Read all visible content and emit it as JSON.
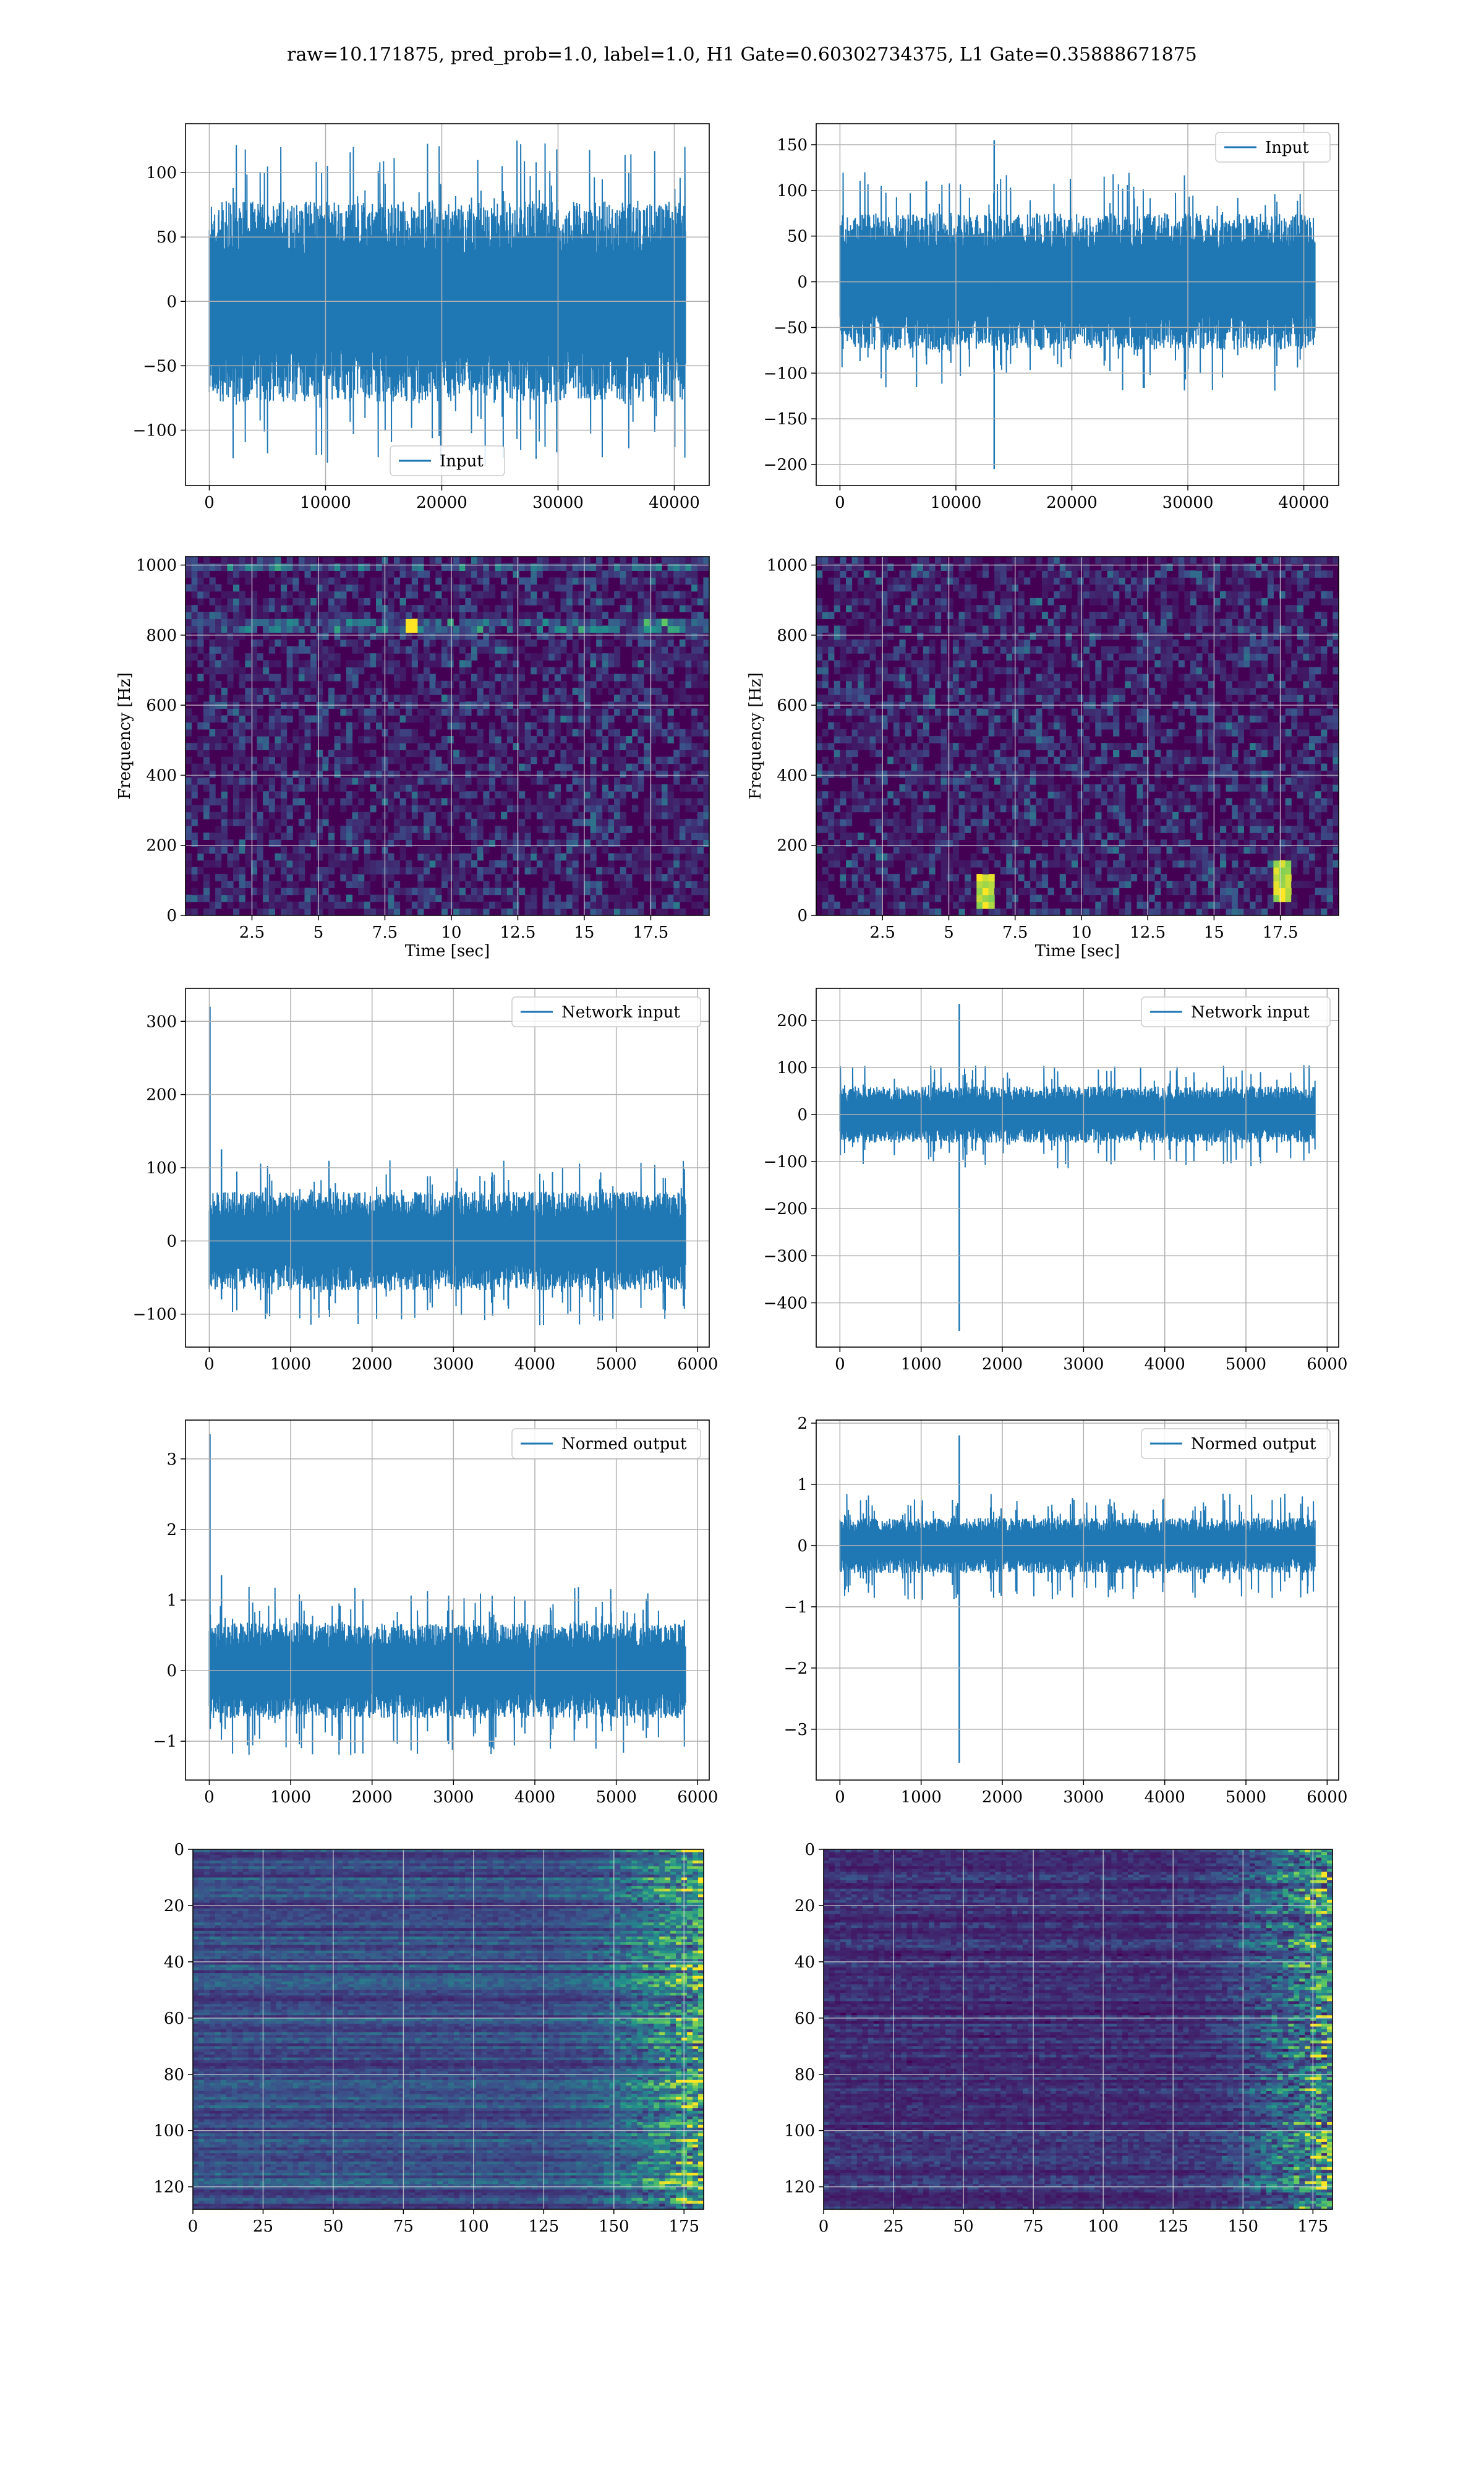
{
  "figure": {
    "suptitle": "raw=10.171875, pred_prob=1.0, label=1.0, H1 Gate=0.60302734375, L1 Gate=0.35888671875",
    "colors": {
      "line": "#1f77b4",
      "grid": "#b0b0b0",
      "spec_bg": "#440154"
    }
  },
  "chart_data": [
    {
      "id": "h1-input",
      "type": "line",
      "series": [
        {
          "name": "Input",
          "color": "#1f77b4",
          "x": [
            0,
            40960
          ],
          "envelope": {
            "band_lo": -52,
            "band_hi": 52,
            "peak_lo": -128,
            "peak_hi": 125
          }
        }
      ],
      "xlim": [
        -2048,
        43008
      ],
      "ylim": [
        -143,
        138
      ],
      "xticks": [
        0,
        10000,
        20000,
        30000,
        40000
      ],
      "yticks": [
        -100,
        -50,
        0,
        50,
        100
      ],
      "xlabel": "",
      "ylabel": "",
      "legend": "lower center",
      "grid": true
    },
    {
      "id": "l1-input",
      "type": "line",
      "series": [
        {
          "name": "Input",
          "color": "#1f77b4",
          "x": [
            0,
            40960
          ],
          "envelope": {
            "band_lo": -50,
            "band_hi": 50,
            "peak_lo": -120,
            "peak_hi": 120
          },
          "spikes": [
            {
              "x": 13300,
              "y_min": -205,
              "y_max": 155
            }
          ]
        }
      ],
      "xlim": [
        -2048,
        43008
      ],
      "ylim": [
        -223,
        173
      ],
      "xticks": [
        0,
        10000,
        20000,
        30000,
        40000
      ],
      "yticks": [
        -200,
        -150,
        -100,
        -50,
        0,
        50,
        100,
        150
      ],
      "xlabel": "",
      "ylabel": "",
      "legend": "upper right",
      "grid": true
    },
    {
      "id": "h1-spectrogram",
      "type": "heatmap",
      "colormap": "viridis",
      "xlim": [
        0,
        19.7
      ],
      "ylim": [
        0,
        1024
      ],
      "xticks": [
        2.5,
        5.0,
        7.5,
        10.0,
        12.5,
        15.0,
        17.5
      ],
      "yticks": [
        0,
        200,
        400,
        600,
        800,
        1000
      ],
      "xlabel": "Time [sec]",
      "ylabel": "Frequency [Hz]",
      "grid": true,
      "features": [
        {
          "kind": "line",
          "freq": 830,
          "intensity": 0.35
        },
        {
          "kind": "line",
          "freq": 1000,
          "intensity": 0.3
        },
        {
          "kind": "spot",
          "t": 8.5,
          "freq": 830,
          "intensity": 1.0
        }
      ]
    },
    {
      "id": "l1-spectrogram",
      "type": "heatmap",
      "colormap": "viridis",
      "xlim": [
        0,
        19.7
      ],
      "ylim": [
        0,
        1024
      ],
      "xticks": [
        2.5,
        5.0,
        7.5,
        10.0,
        12.5,
        15.0,
        17.5
      ],
      "yticks": [
        0,
        200,
        400,
        600,
        800,
        1000
      ],
      "xlabel": "Time [sec]",
      "ylabel": "Frequency [Hz]",
      "grid": true,
      "features": [
        {
          "kind": "chirp",
          "t": 6.4,
          "freq_lo": 20,
          "freq_hi": 110,
          "intensity": 0.8
        },
        {
          "kind": "chirp",
          "t": 17.5,
          "freq_lo": 30,
          "freq_hi": 150,
          "intensity": 0.8
        }
      ]
    },
    {
      "id": "h1-network-input",
      "type": "line",
      "series": [
        {
          "name": "Network input",
          "color": "#1f77b4",
          "x": [
            0,
            5850
          ],
          "envelope": {
            "band_lo": -45,
            "band_hi": 45,
            "peak_lo": -115,
            "peak_hi": 110
          },
          "spikes": [
            {
              "x": 8,
              "y_min": -60,
              "y_max": 320
            },
            {
              "x": 150,
              "y_min": -80,
              "y_max": 125
            }
          ]
        }
      ],
      "xlim": [
        -292,
        6142
      ],
      "ylim": [
        -145,
        345
      ],
      "xticks": [
        0,
        1000,
        2000,
        3000,
        4000,
        5000,
        6000
      ],
      "yticks": [
        -100,
        0,
        100,
        200,
        300
      ],
      "xlabel": "",
      "ylabel": "",
      "legend": "upper right",
      "grid": true
    },
    {
      "id": "l1-network-input",
      "type": "line",
      "series": [
        {
          "name": "Network input",
          "color": "#1f77b4",
          "x": [
            0,
            5850
          ],
          "envelope": {
            "band_lo": -40,
            "band_hi": 40,
            "peak_lo": -115,
            "peak_hi": 105
          },
          "spikes": [
            {
              "x": 1470,
              "y_min": -460,
              "y_max": 235
            }
          ]
        }
      ],
      "xlim": [
        -292,
        6142
      ],
      "ylim": [
        -494,
        268
      ],
      "xticks": [
        0,
        1000,
        2000,
        3000,
        4000,
        5000,
        6000
      ],
      "yticks": [
        -400,
        -300,
        -200,
        -100,
        0,
        100,
        200
      ],
      "xlabel": "",
      "ylabel": "",
      "legend": "upper right",
      "grid": true
    },
    {
      "id": "h1-normed-output",
      "type": "line",
      "series": [
        {
          "name": "Normed output",
          "color": "#1f77b4",
          "x": [
            0,
            5850
          ],
          "envelope": {
            "band_lo": -0.45,
            "band_hi": 0.45,
            "peak_lo": -1.2,
            "peak_hi": 1.2
          },
          "spikes": [
            {
              "x": 8,
              "y_min": -0.6,
              "y_max": 3.35
            },
            {
              "x": 150,
              "y_min": -0.8,
              "y_max": 1.35
            }
          ]
        }
      ],
      "xlim": [
        -292,
        6142
      ],
      "ylim": [
        -1.55,
        3.55
      ],
      "xticks": [
        0,
        1000,
        2000,
        3000,
        4000,
        5000,
        6000
      ],
      "yticks": [
        -1,
        0,
        1,
        2,
        3
      ],
      "xlabel": "",
      "ylabel": "",
      "legend": "upper right",
      "grid": true
    },
    {
      "id": "l1-normed-output",
      "type": "line",
      "series": [
        {
          "name": "Normed output",
          "color": "#1f77b4",
          "x": [
            0,
            5850
          ],
          "envelope": {
            "band_lo": -0.3,
            "band_hi": 0.3,
            "peak_lo": -0.9,
            "peak_hi": 0.85
          },
          "spikes": [
            {
              "x": 1470,
              "y_min": -3.55,
              "y_max": 1.8
            }
          ]
        }
      ],
      "xlim": [
        -292,
        6142
      ],
      "ylim": [
        -3.83,
        2.05
      ],
      "xticks": [
        0,
        1000,
        2000,
        3000,
        4000,
        5000,
        6000
      ],
      "yticks": [
        -3,
        -2,
        -1,
        0,
        1,
        2
      ],
      "xlabel": "",
      "ylabel": "",
      "legend": "upper right",
      "grid": true
    },
    {
      "id": "h1-feature-map",
      "type": "heatmap",
      "colormap": "viridis",
      "xlim": [
        0,
        182
      ],
      "ylim": [
        128,
        0
      ],
      "xticks": [
        0,
        25,
        50,
        75,
        100,
        125,
        150,
        175
      ],
      "yticks": [
        0,
        20,
        40,
        60,
        80,
        100,
        120
      ],
      "xlabel": "",
      "ylabel": "",
      "grid": true,
      "features": [
        {
          "kind": "ramp",
          "from_x": 120,
          "to_x": 182,
          "intensity": 0.75,
          "base": 0.18
        }
      ]
    },
    {
      "id": "l1-feature-map",
      "type": "heatmap",
      "colormap": "viridis",
      "xlim": [
        0,
        182
      ],
      "ylim": [
        128,
        0
      ],
      "xticks": [
        0,
        25,
        50,
        75,
        100,
        125,
        150,
        175
      ],
      "yticks": [
        0,
        20,
        40,
        60,
        80,
        100,
        120
      ],
      "xlabel": "",
      "ylabel": "",
      "grid": true,
      "features": [
        {
          "kind": "ramp",
          "from_x": 125,
          "to_x": 182,
          "intensity": 0.85,
          "base": 0.08
        }
      ]
    }
  ]
}
